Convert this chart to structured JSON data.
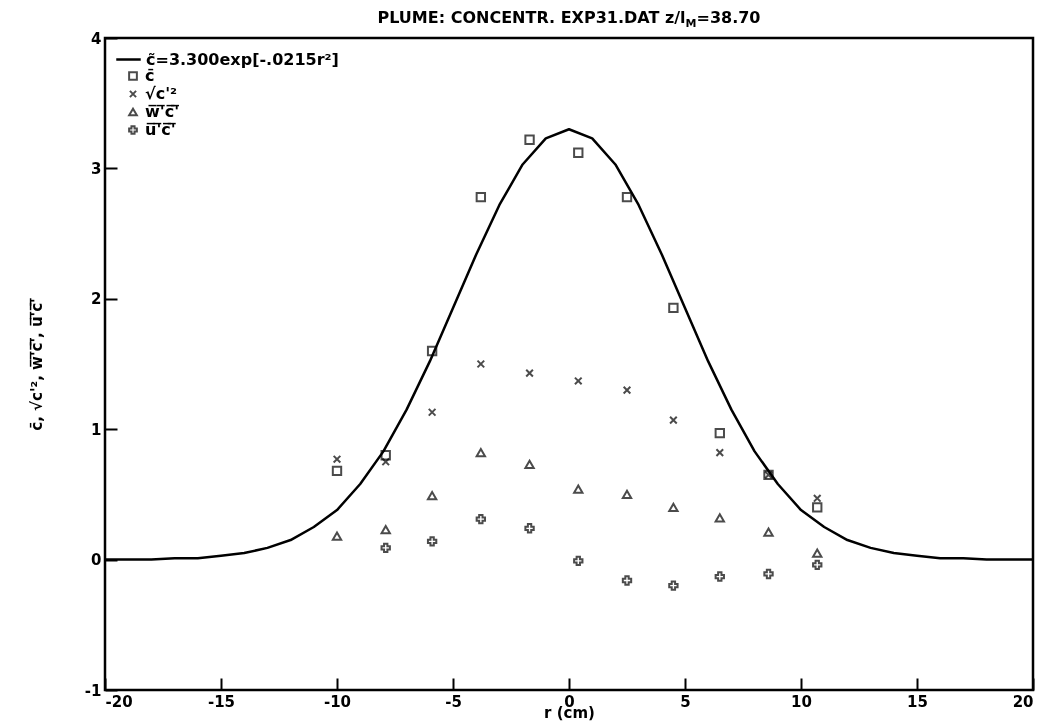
{
  "chart_data": {
    "type": "scatter",
    "title": "PLUME: CONCENTR. EXP31.DAT z/l$_{M}$=38.70",
    "xlabel": "r (cm)",
    "ylabel": "c̄, √c'², w̅'̅c̅'̅, u̅'̅c̅'̅",
    "xlim": [
      -20,
      20
    ],
    "xticks": [
      -20,
      -15,
      -10,
      -5,
      0,
      5,
      10,
      15,
      20
    ],
    "ylim": [
      -1,
      4
    ],
    "yticks": [
      {
        "value": -1,
        "label": "-1"
      },
      0,
      1,
      2,
      3,
      4
    ],
    "grid": false,
    "legend": "top left",
    "series": [
      {
        "name": "c̃=3.300exp[-.0215r²]",
        "type": "line",
        "color": "#000000",
        "marker": "none",
        "line_style": "solid",
        "x": [
          -20,
          -19,
          -18,
          -17,
          -16,
          -15,
          -14,
          -13,
          -12,
          -11,
          -10,
          -9,
          -8,
          -7,
          -6,
          -5,
          -4,
          -3,
          -2,
          -1,
          0,
          1,
          2,
          3,
          4,
          5,
          6,
          7,
          8,
          9,
          10,
          11,
          12,
          13,
          14,
          15,
          16,
          17,
          18,
          19,
          20
        ],
        "values": [
          0,
          0,
          0,
          0.01,
          0.01,
          0.03,
          0.05,
          0.09,
          0.15,
          0.25,
          0.38,
          0.58,
          0.83,
          1.15,
          1.52,
          1.93,
          2.34,
          2.72,
          3.03,
          3.23,
          3.3,
          3.23,
          3.03,
          2.72,
          2.34,
          1.93,
          1.52,
          1.15,
          0.83,
          0.58,
          0.38,
          0.25,
          0.15,
          0.09,
          0.05,
          0.03,
          0.01,
          0.01,
          0,
          0,
          0
        ]
      },
      {
        "name": "c̄",
        "type": "scatter",
        "color": "#000000",
        "marker": "square",
        "x": [
          -10,
          -7.9,
          -5.9,
          -3.8,
          -1.7,
          0.4,
          2.5,
          4.5,
          6.5,
          8.6,
          10.7
        ],
        "values": [
          0.68,
          0.8,
          1.6,
          2.78,
          3.22,
          3.12,
          2.78,
          1.93,
          0.97,
          0.65,
          0.4
        ]
      },
      {
        "name": "√c'²",
        "type": "scatter",
        "color": "#000000",
        "marker": "x",
        "x": [
          -10,
          -7.9,
          -5.9,
          -3.8,
          -1.7,
          0.4,
          2.5,
          4.5,
          6.5,
          8.6,
          10.7
        ],
        "values": [
          0.77,
          0.75,
          1.13,
          1.5,
          1.43,
          1.37,
          1.3,
          1.07,
          0.82,
          0.65,
          0.47
        ]
      },
      {
        "name": "w̅'̅c̅'̅",
        "type": "scatter",
        "color": "#000000",
        "marker": "triangle",
        "x": [
          -10,
          -7.9,
          -5.9,
          -3.8,
          -1.7,
          0.4,
          2.5,
          4.5,
          6.5,
          8.6,
          10.7
        ],
        "values": [
          0.18,
          0.23,
          0.49,
          0.82,
          0.73,
          0.54,
          0.5,
          0.4,
          0.32,
          0.21,
          0.05
        ]
      },
      {
        "name": "u̅'̅c̅'̅",
        "type": "scatter",
        "color": "#000000",
        "marker": "cross",
        "x": [
          -7.9,
          -5.9,
          -3.8,
          -1.7,
          0.4,
          2.5,
          4.5,
          6.5,
          8.6,
          10.7
        ],
        "values": [
          0.09,
          0.14,
          0.31,
          0.24,
          -0.01,
          -0.16,
          -0.2,
          -0.13,
          -0.11,
          -0.04
        ]
      }
    ]
  }
}
